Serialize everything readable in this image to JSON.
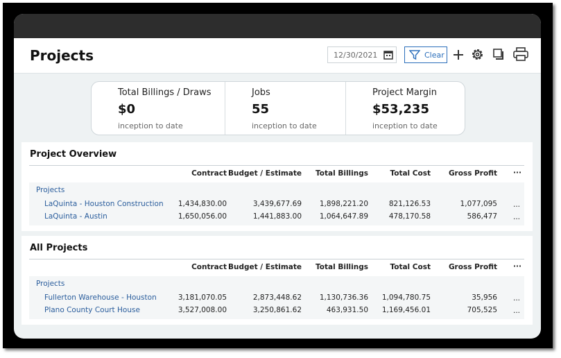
{
  "header": {
    "title": "Projects",
    "date": "12/30/2021",
    "clear": "Clear"
  },
  "kpis": [
    {
      "label": "Total Billings / Draws",
      "value": "$0",
      "sub": "inception to date"
    },
    {
      "label": "Jobs",
      "value": "55",
      "sub": "inception to date"
    },
    {
      "label": "Project Margin",
      "value": "$53,235",
      "sub": "inception to date"
    }
  ],
  "sections": [
    {
      "title": "Project Overview",
      "columns": [
        "Contract",
        "Budget / Estimate",
        "Total Billings",
        "Total Cost",
        "Gross Profit",
        "···"
      ],
      "group": "Projects",
      "rows": [
        [
          "LaQuinta - Houston Construction",
          "1,434,830.00",
          "3,439,677.69",
          "1,898,221.20",
          "821,126.53",
          "1,077,095",
          "..."
        ],
        [
          "LaQuinta - Austin",
          "1,650,056.00",
          "1,441,883.00",
          "1,064,647.89",
          "478,170.58",
          "586,477",
          "..."
        ]
      ]
    },
    {
      "title": "All Projects",
      "columns": [
        "Contract",
        "Budget / Estimate",
        "Total Billings",
        "Total Cost",
        "Gross Profit",
        "···"
      ],
      "group": "Projects",
      "rows": [
        [
          "Fullerton Warehouse - Houston",
          "3,181,070.05",
          "2,873,448.62",
          "1,130,736.36",
          "1,094,780.75",
          "35,956",
          "..."
        ],
        [
          "Plano County Court House",
          "3,527,008.00",
          "3,250,861.62",
          "463,931.50",
          "1,169,456.01",
          "705,525",
          "..."
        ]
      ]
    }
  ]
}
